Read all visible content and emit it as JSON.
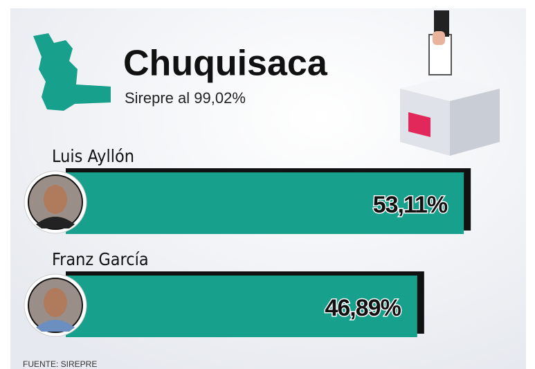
{
  "chart_data": {
    "type": "bar",
    "orientation": "horizontal",
    "title": "Chuquisaca",
    "subtitle": "Sirepre al 99,02%",
    "categories": [
      "Luis Ayllón",
      "Franz García"
    ],
    "values": [
      53.11,
      46.89
    ],
    "value_labels": [
      "53,11%",
      "46,89%"
    ],
    "color": "#17a08c",
    "source": "FUENTE: SIREPRE"
  }
}
